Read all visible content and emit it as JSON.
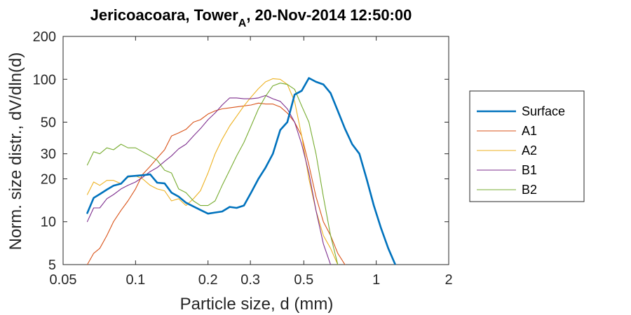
{
  "chart_data": {
    "type": "line",
    "title_main": "Jericoacoara, Tower",
    "title_sub": "A",
    "title_rest": ", 20-Nov-2014 12:50:00",
    "xlabel": "Particle size, d (mm)",
    "ylabel": "Norm. size distr., dV/dln(d)",
    "xscale": "log",
    "yscale": "log",
    "xlim": [
      0.05,
      2
    ],
    "ylim": [
      5,
      200
    ],
    "xticks": [
      0.05,
      0.1,
      0.2,
      0.3,
      0.5,
      1,
      2
    ],
    "xtick_labels": [
      "0.05",
      "0.1",
      "0.2",
      "0.3",
      "0.5",
      "1",
      "2"
    ],
    "yticks": [
      5,
      10,
      20,
      30,
      50,
      100,
      200
    ],
    "ytick_labels": [
      "5",
      "10",
      "20",
      "30",
      "50",
      "100",
      "200"
    ],
    "grid": false,
    "legend_position": "right",
    "series": [
      {
        "name": "Surface",
        "color": "#0072BD",
        "line_width": 2.6,
        "x": [
          0.063,
          0.067,
          0.071,
          0.076,
          0.081,
          0.087,
          0.093,
          0.1,
          0.107,
          0.115,
          0.123,
          0.132,
          0.141,
          0.151,
          0.162,
          0.174,
          0.186,
          0.2,
          0.214,
          0.229,
          0.246,
          0.263,
          0.282,
          0.302,
          0.324,
          0.347,
          0.372,
          0.399,
          0.427,
          0.458,
          0.49,
          0.525,
          0.562,
          0.603,
          0.646,
          0.692,
          0.741,
          0.794,
          0.851,
          0.912,
          0.977,
          1.047,
          1.122,
          1.2
        ],
        "y": [
          11.5,
          14.7,
          15.6,
          16.8,
          17.9,
          18.5,
          20.8,
          21.0,
          21.2,
          21.5,
          18.8,
          18.6,
          16.0,
          15.0,
          13.6,
          12.8,
          12.1,
          11.4,
          11.6,
          11.8,
          12.7,
          12.5,
          13.0,
          16.0,
          20.0,
          24.0,
          30.0,
          44.0,
          50.0,
          78.0,
          83.0,
          102.0,
          96.0,
          92.0,
          80.0,
          60.0,
          45.0,
          35.0,
          30.0,
          20.0,
          13.0,
          9.0,
          6.5,
          5.0
        ]
      },
      {
        "name": "A1",
        "color": "#D95319",
        "line_width": 1.1,
        "x": [
          0.063,
          0.067,
          0.071,
          0.076,
          0.081,
          0.087,
          0.093,
          0.1,
          0.107,
          0.115,
          0.123,
          0.132,
          0.141,
          0.151,
          0.162,
          0.174,
          0.186,
          0.2,
          0.214,
          0.229,
          0.246,
          0.263,
          0.282,
          0.302,
          0.324,
          0.347,
          0.372,
          0.399,
          0.427,
          0.458,
          0.49,
          0.525,
          0.562,
          0.603,
          0.646,
          0.692,
          0.741
        ],
        "y": [
          5.0,
          6.0,
          6.5,
          8.0,
          10.0,
          12.0,
          14.0,
          17.0,
          21.5,
          24.5,
          28.0,
          32.0,
          40.0,
          42.0,
          44.5,
          50.0,
          52.0,
          57.0,
          60.0,
          62.0,
          63.0,
          64.0,
          65.0,
          66.0,
          68.0,
          67.0,
          67.0,
          64.0,
          58.0,
          50.0,
          40.0,
          25.0,
          15.0,
          10.0,
          8.0,
          6.0,
          5.0
        ]
      },
      {
        "name": "A2",
        "color": "#EDB120",
        "line_width": 1.1,
        "x": [
          0.063,
          0.067,
          0.071,
          0.076,
          0.081,
          0.087,
          0.093,
          0.1,
          0.107,
          0.115,
          0.123,
          0.132,
          0.141,
          0.151,
          0.162,
          0.174,
          0.186,
          0.2,
          0.214,
          0.229,
          0.246,
          0.263,
          0.282,
          0.302,
          0.324,
          0.347,
          0.372,
          0.399,
          0.427,
          0.458,
          0.49,
          0.525,
          0.562,
          0.603,
          0.646,
          0.692
        ],
        "y": [
          15.5,
          19.0,
          18.0,
          19.5,
          19.5,
          18.5,
          20.5,
          21.0,
          20.0,
          18.0,
          17.0,
          16.5,
          14.0,
          14.5,
          13.0,
          14.5,
          16.5,
          22.0,
          30.0,
          38.0,
          47.0,
          55.0,
          65.0,
          75.0,
          86.0,
          96.0,
          101.0,
          100.0,
          92.0,
          70.0,
          40.0,
          20.0,
          12.0,
          8.0,
          6.5,
          5.0
        ]
      },
      {
        "name": "B1",
        "color": "#7E2F8E",
        "line_width": 1.1,
        "x": [
          0.063,
          0.067,
          0.071,
          0.076,
          0.081,
          0.087,
          0.093,
          0.1,
          0.107,
          0.115,
          0.123,
          0.132,
          0.141,
          0.151,
          0.162,
          0.174,
          0.186,
          0.2,
          0.214,
          0.229,
          0.246,
          0.263,
          0.282,
          0.302,
          0.324,
          0.347,
          0.372,
          0.399,
          0.427,
          0.458,
          0.49,
          0.525,
          0.562,
          0.603,
          0.646
        ],
        "y": [
          10.0,
          12.5,
          12.5,
          14.5,
          15.5,
          17.0,
          18.0,
          19.0,
          20.5,
          22.5,
          24.0,
          26.5,
          29.0,
          32.5,
          35.0,
          40.0,
          45.0,
          52.0,
          58.0,
          66.0,
          74.0,
          74.0,
          73.0,
          73.0,
          74.0,
          77.0,
          73.0,
          70.0,
          62.0,
          50.0,
          35.0,
          22.0,
          12.0,
          7.0,
          5.0
        ]
      },
      {
        "name": "B2",
        "color": "#77AC30",
        "line_width": 1.1,
        "x": [
          0.063,
          0.067,
          0.071,
          0.076,
          0.081,
          0.087,
          0.093,
          0.1,
          0.107,
          0.115,
          0.123,
          0.132,
          0.141,
          0.151,
          0.162,
          0.174,
          0.186,
          0.2,
          0.214,
          0.229,
          0.246,
          0.263,
          0.282,
          0.302,
          0.324,
          0.347,
          0.372,
          0.399,
          0.427,
          0.458,
          0.49,
          0.525,
          0.562,
          0.603,
          0.646,
          0.692
        ],
        "y": [
          25.0,
          31.0,
          30.0,
          33.0,
          32.0,
          35.0,
          33.0,
          33.0,
          31.0,
          29.0,
          27.0,
          23.0,
          22.0,
          17.0,
          16.0,
          14.0,
          13.0,
          13.0,
          14.0,
          18.0,
          23.0,
          29.0,
          36.0,
          47.0,
          62.0,
          76.0,
          90.0,
          94.0,
          92.0,
          85.0,
          65.0,
          50.0,
          30.0,
          15.0,
          8.0,
          5.0
        ]
      }
    ]
  }
}
